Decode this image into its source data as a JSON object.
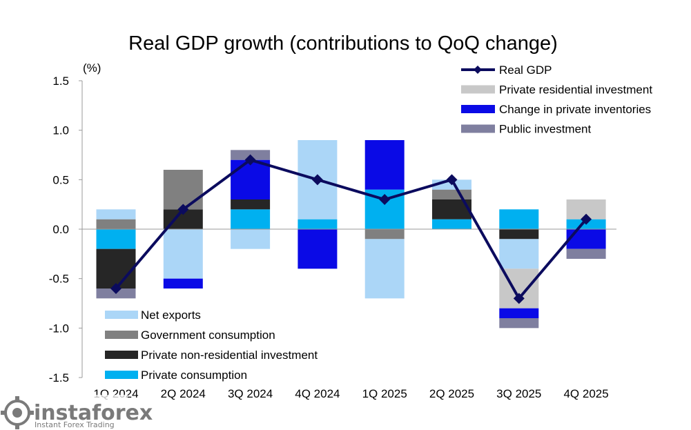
{
  "chart_data": {
    "type": "bar",
    "subtype": "stacked-contribution-with-line",
    "title": "Real GDP growth (contributions to QoQ change)",
    "ylabel": "(%)",
    "ylim": [
      -1.5,
      1.5
    ],
    "yticks": [
      "1.5",
      "1.0",
      "0.5",
      "0.0",
      "-0.5",
      "-1.0",
      "-1.5"
    ],
    "ytick_values": [
      1.5,
      1.0,
      0.5,
      0.0,
      -0.5,
      -1.0,
      -1.5
    ],
    "categories": [
      "1Q 2024",
      "2Q 2024",
      "3Q 2024",
      "4Q 2024",
      "1Q 2025",
      "2Q 2025",
      "3Q 2025",
      "4Q 2025"
    ],
    "series": [
      {
        "name": "Private consumption",
        "color": "#00b0f0",
        "values": [
          -0.2,
          0.0,
          0.2,
          0.1,
          0.4,
          0.1,
          0.2,
          0.1
        ]
      },
      {
        "name": "Private non-residential investment",
        "color": "#262626",
        "values": [
          -0.4,
          0.2,
          0.1,
          0.0,
          0.0,
          0.2,
          -0.1,
          0.0
        ]
      },
      {
        "name": "Government consumption",
        "color": "#808080",
        "values": [
          0.1,
          0.4,
          0.0,
          0.0,
          -0.1,
          0.1,
          0.0,
          0.0
        ]
      },
      {
        "name": "Net exports",
        "color": "#abd6f7",
        "values": [
          0.1,
          -0.5,
          -0.2,
          0.8,
          -0.6,
          0.1,
          -0.3,
          0.0
        ]
      },
      {
        "name": "Private residential investment",
        "color": "#c8c8c8",
        "values": [
          0.0,
          0.0,
          0.0,
          0.0,
          0.0,
          0.0,
          -0.4,
          0.2
        ]
      },
      {
        "name": "Change in private inventories",
        "color": "#0a0ae6",
        "values": [
          0.0,
          -0.1,
          0.4,
          -0.4,
          0.5,
          0.0,
          -0.1,
          -0.2
        ]
      },
      {
        "name": "Public investment",
        "color": "#7f7f9f",
        "values": [
          -0.1,
          0.0,
          0.1,
          0.0,
          0.0,
          0.0,
          -0.1,
          -0.1
        ]
      }
    ],
    "line": {
      "name": "Real GDP",
      "color": "#0b0b5e",
      "values": [
        -0.6,
        0.2,
        0.7,
        0.5,
        0.3,
        0.5,
        -0.7,
        0.1
      ]
    },
    "legend_top_right": [
      "Real GDP",
      "Private residential investment",
      "Change in private inventories",
      "Public investment"
    ],
    "legend_bottom_left": [
      "Net exports",
      "Government consumption",
      "Private non-residential investment",
      "Private consumption"
    ],
    "grid": false
  },
  "watermark": {
    "brand": "instaforex",
    "tagline": "Instant Forex Trading"
  }
}
